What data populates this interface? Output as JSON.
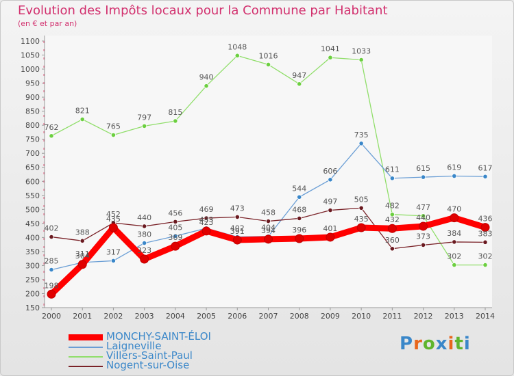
{
  "header": {
    "title": "Evolution des Impôts locaux pour la Commune par Habitant",
    "subtitle": "(en € et par an)"
  },
  "logo": {
    "text": "Proxiti",
    "letters": [
      "P",
      "r",
      "o",
      "x",
      "i",
      "t",
      "i"
    ],
    "colors": [
      "#3a87c9",
      "#e8661c",
      "#5fb52d",
      "#3a87c9",
      "#e8661c",
      "#5fb52d",
      "#3a87c9"
    ]
  },
  "chart_data": {
    "type": "line",
    "title": "Evolution des Impôts locaux pour la Commune par Habitant",
    "subtitle": "(en € et par an)",
    "xlabel": "",
    "ylabel": "",
    "x": [
      2000,
      2001,
      2002,
      2003,
      2004,
      2005,
      2006,
      2007,
      2008,
      2009,
      2010,
      2011,
      2012,
      2013,
      2014
    ],
    "ylim": [
      150,
      1100
    ],
    "yticks": [
      150,
      200,
      250,
      300,
      350,
      400,
      450,
      500,
      550,
      600,
      650,
      700,
      750,
      800,
      850,
      900,
      950,
      1000,
      1050,
      1100
    ],
    "grid": false,
    "legend_position": "bottom-left",
    "series": [
      {
        "name": "MONCHY-SAINT-ÉLOI",
        "color": "#ff0000",
        "marker_color": "#e00000",
        "emphasis": "thick",
        "values": [
          198,
          304,
          435,
          323,
          369,
          423,
          391,
          394,
          396,
          401,
          435,
          432,
          440,
          470,
          436
        ],
        "labels": [
          "198",
          "304",
          "435",
          "323",
          "369",
          "423",
          "391",
          "394",
          "396",
          "401",
          "435",
          "432",
          "440",
          "470",
          "436"
        ]
      },
      {
        "name": "Laigneville",
        "color": "#6a9ed5",
        "marker_color": "#3a87c9",
        "emphasis": "thin",
        "values": [
          285,
          311,
          317,
          380,
          405,
          433,
          402,
          404,
          544,
          606,
          735,
          611,
          615,
          619,
          617
        ],
        "labels": [
          "285",
          "311",
          "317",
          "380",
          "405",
          "433",
          "402",
          "404",
          "544",
          "606",
          "735",
          "611",
          "615",
          "619",
          "617"
        ]
      },
      {
        "name": "Villers-Saint-Paul",
        "color": "#90de6a",
        "marker_color": "#6ccf40",
        "emphasis": "thin",
        "values": [
          762,
          821,
          765,
          797,
          815,
          940,
          1048,
          1016,
          947,
          1041,
          1033,
          482,
          477,
          302,
          302
        ],
        "labels": [
          "762",
          "821",
          "765",
          "797",
          "815",
          "940",
          "1048",
          "1016",
          "947",
          "1041",
          "1033",
          "482",
          "477",
          "302",
          "302"
        ]
      },
      {
        "name": "Nogent-sur-Oise",
        "color": "#7a2228",
        "marker_color": "#6a1a20",
        "emphasis": "thin",
        "values": [
          402,
          388,
          452,
          440,
          456,
          469,
          473,
          458,
          468,
          497,
          505,
          360,
          373,
          384,
          383
        ],
        "labels": [
          "402",
          "388",
          "452",
          "440",
          "456",
          "469",
          "473",
          "458",
          "468",
          "497",
          "505",
          "360",
          "373",
          "384",
          "383"
        ]
      }
    ]
  }
}
